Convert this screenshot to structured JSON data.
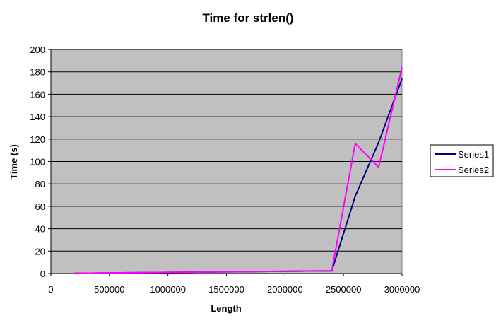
{
  "chart_data": {
    "type": "line",
    "title": "Time for strlen()",
    "xlabel": "Length",
    "ylabel": "Time (s)",
    "xlim": [
      0,
      3000000
    ],
    "ylim": [
      0,
      200
    ],
    "x_ticks": [
      0,
      500000,
      1000000,
      1500000,
      2000000,
      2500000,
      3000000
    ],
    "y_ticks": [
      0,
      20,
      40,
      60,
      80,
      100,
      120,
      140,
      160,
      180,
      200
    ],
    "grid": "horizontal",
    "plot_background": "#c0c0c0",
    "legend_position": "right",
    "x": [
      200000,
      400000,
      600000,
      800000,
      1000000,
      1200000,
      1400000,
      1600000,
      1800000,
      2000000,
      2200000,
      2400000,
      2600000,
      2800000,
      3000000
    ],
    "series": [
      {
        "name": "Series1",
        "color": "#000080",
        "values": [
          0.2,
          0.4,
          0.6,
          0.8,
          1.0,
          1.2,
          1.4,
          1.6,
          1.8,
          2.0,
          2.2,
          2.4,
          69,
          117,
          174
        ]
      },
      {
        "name": "Series2",
        "color": "#ff00ff",
        "values": [
          0.2,
          0.4,
          0.6,
          0.8,
          1.0,
          1.2,
          1.4,
          1.6,
          1.8,
          2.0,
          2.2,
          2.4,
          116,
          95,
          184
        ]
      }
    ]
  }
}
